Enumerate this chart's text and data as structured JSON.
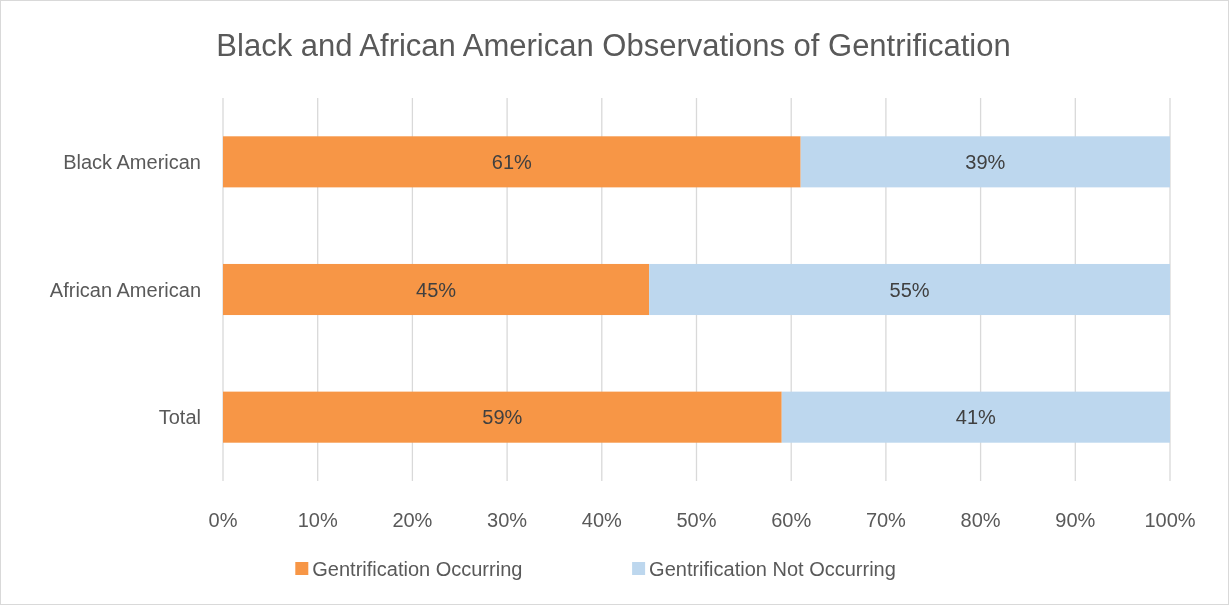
{
  "chart_data": {
    "type": "bar",
    "orientation": "horizontal",
    "stacked": true,
    "title": "Black and African American Observations of Gentrification",
    "categories": [
      "Black American",
      "African American",
      "Total"
    ],
    "series": [
      {
        "name": "Gentrification Occurring",
        "color": "#f79646",
        "values": [
          61,
          45,
          59
        ],
        "value_labels": [
          "61%",
          "45%",
          "59%"
        ]
      },
      {
        "name": "Gentrification Not Occurring",
        "color": "#bdd7ee",
        "values": [
          39,
          55,
          41
        ],
        "value_labels": [
          "39%",
          "55%",
          "41%"
        ]
      }
    ],
    "xlim": [
      0,
      100
    ],
    "xticks": [
      {
        "value": 0,
        "label": "0%"
      },
      {
        "value": 10,
        "label": "10%"
      },
      {
        "value": 20,
        "label": "20%"
      },
      {
        "value": 30,
        "label": "30%"
      },
      {
        "value": 40,
        "label": "40%"
      },
      {
        "value": 50,
        "label": "50%"
      },
      {
        "value": 60,
        "label": "60%"
      },
      {
        "value": 70,
        "label": "70%"
      },
      {
        "value": 80,
        "label": "80%"
      },
      {
        "value": 90,
        "label": "90%"
      },
      {
        "value": 100,
        "label": "100%"
      }
    ],
    "grid": "x",
    "legend": "bottom"
  }
}
